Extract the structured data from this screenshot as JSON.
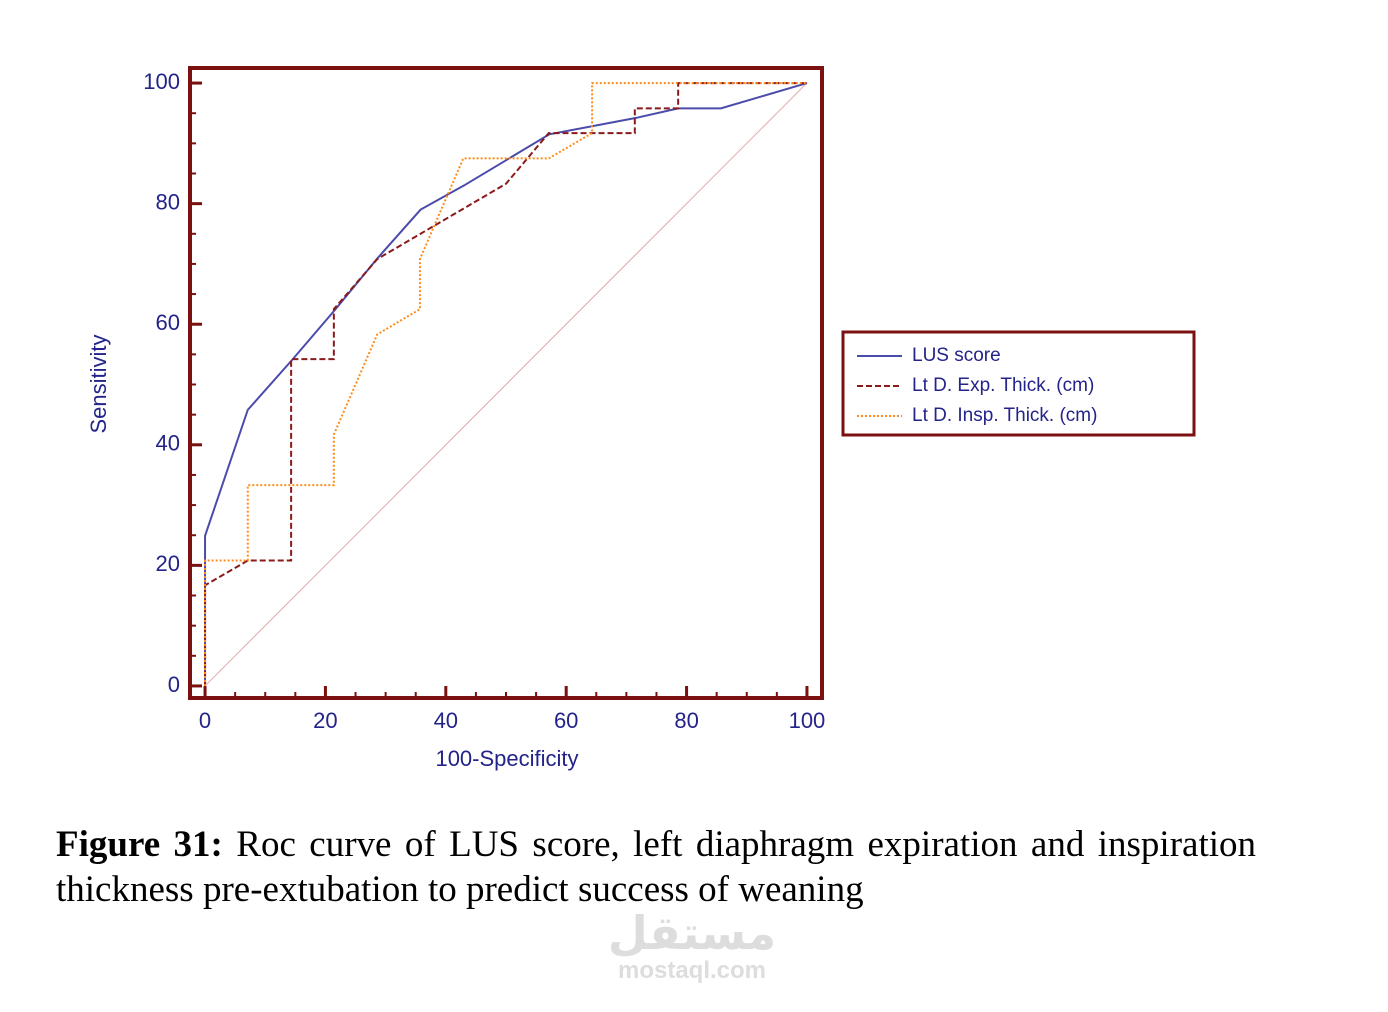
{
  "chart_data": {
    "type": "line",
    "xlabel": "100-Specificity",
    "ylabel": "Sensitivity",
    "xlim": [
      -2.5,
      102.5
    ],
    "ylim": [
      -2,
      102.5
    ],
    "xticks": [
      0,
      20,
      40,
      60,
      80,
      100
    ],
    "yticks": [
      0,
      20,
      40,
      60,
      80,
      100
    ],
    "legend": "right",
    "series": [
      {
        "name": "LUS score",
        "color": "#4b4bab",
        "style": "solid",
        "x": [
          0,
          0,
          7.1,
          14.4,
          21.6,
          28.7,
          35.8,
          43,
          57.2,
          71.5,
          78.6,
          85.7,
          100
        ],
        "values": [
          0,
          24.9,
          45.8,
          54,
          62.4,
          71,
          79,
          83,
          91.5,
          94.2,
          95.8,
          95.8,
          100
        ]
      },
      {
        "name": "Lt D. Exp. Thick. (cm)",
        "color": "#8b1a1a",
        "style": "dashed",
        "x": [
          0,
          0,
          7.1,
          14.3,
          14.3,
          21.4,
          21.4,
          28.6,
          50,
          57.1,
          71.4,
          71.4,
          78.6,
          78.6,
          100
        ],
        "values": [
          0,
          16.7,
          20.8,
          20.8,
          54.2,
          54.2,
          62.5,
          70.8,
          83.3,
          91.7,
          91.7,
          95.8,
          95.8,
          100,
          100
        ]
      },
      {
        "name": "Lt D. Insp. Thick. (cm)",
        "color": "#ff8c1a",
        "style": "dotted",
        "x": [
          0,
          0,
          7.1,
          7.1,
          21.4,
          21.4,
          28.6,
          35.7,
          35.7,
          42.9,
          57.1,
          64.3,
          64.3,
          100
        ],
        "values": [
          0,
          20.8,
          20.8,
          33.3,
          33.3,
          41.7,
          58.3,
          62.5,
          70.8,
          87.5,
          87.5,
          91.7,
          100,
          100
        ]
      }
    ]
  },
  "caption": {
    "label": "Figure 31:",
    "text": "Roc curve of LUS score, left diaphragm expiration and inspiration thickness pre-extubation to predict success of weaning"
  },
  "watermark": {
    "logo": "مستقل",
    "site": "mostaql.com"
  }
}
